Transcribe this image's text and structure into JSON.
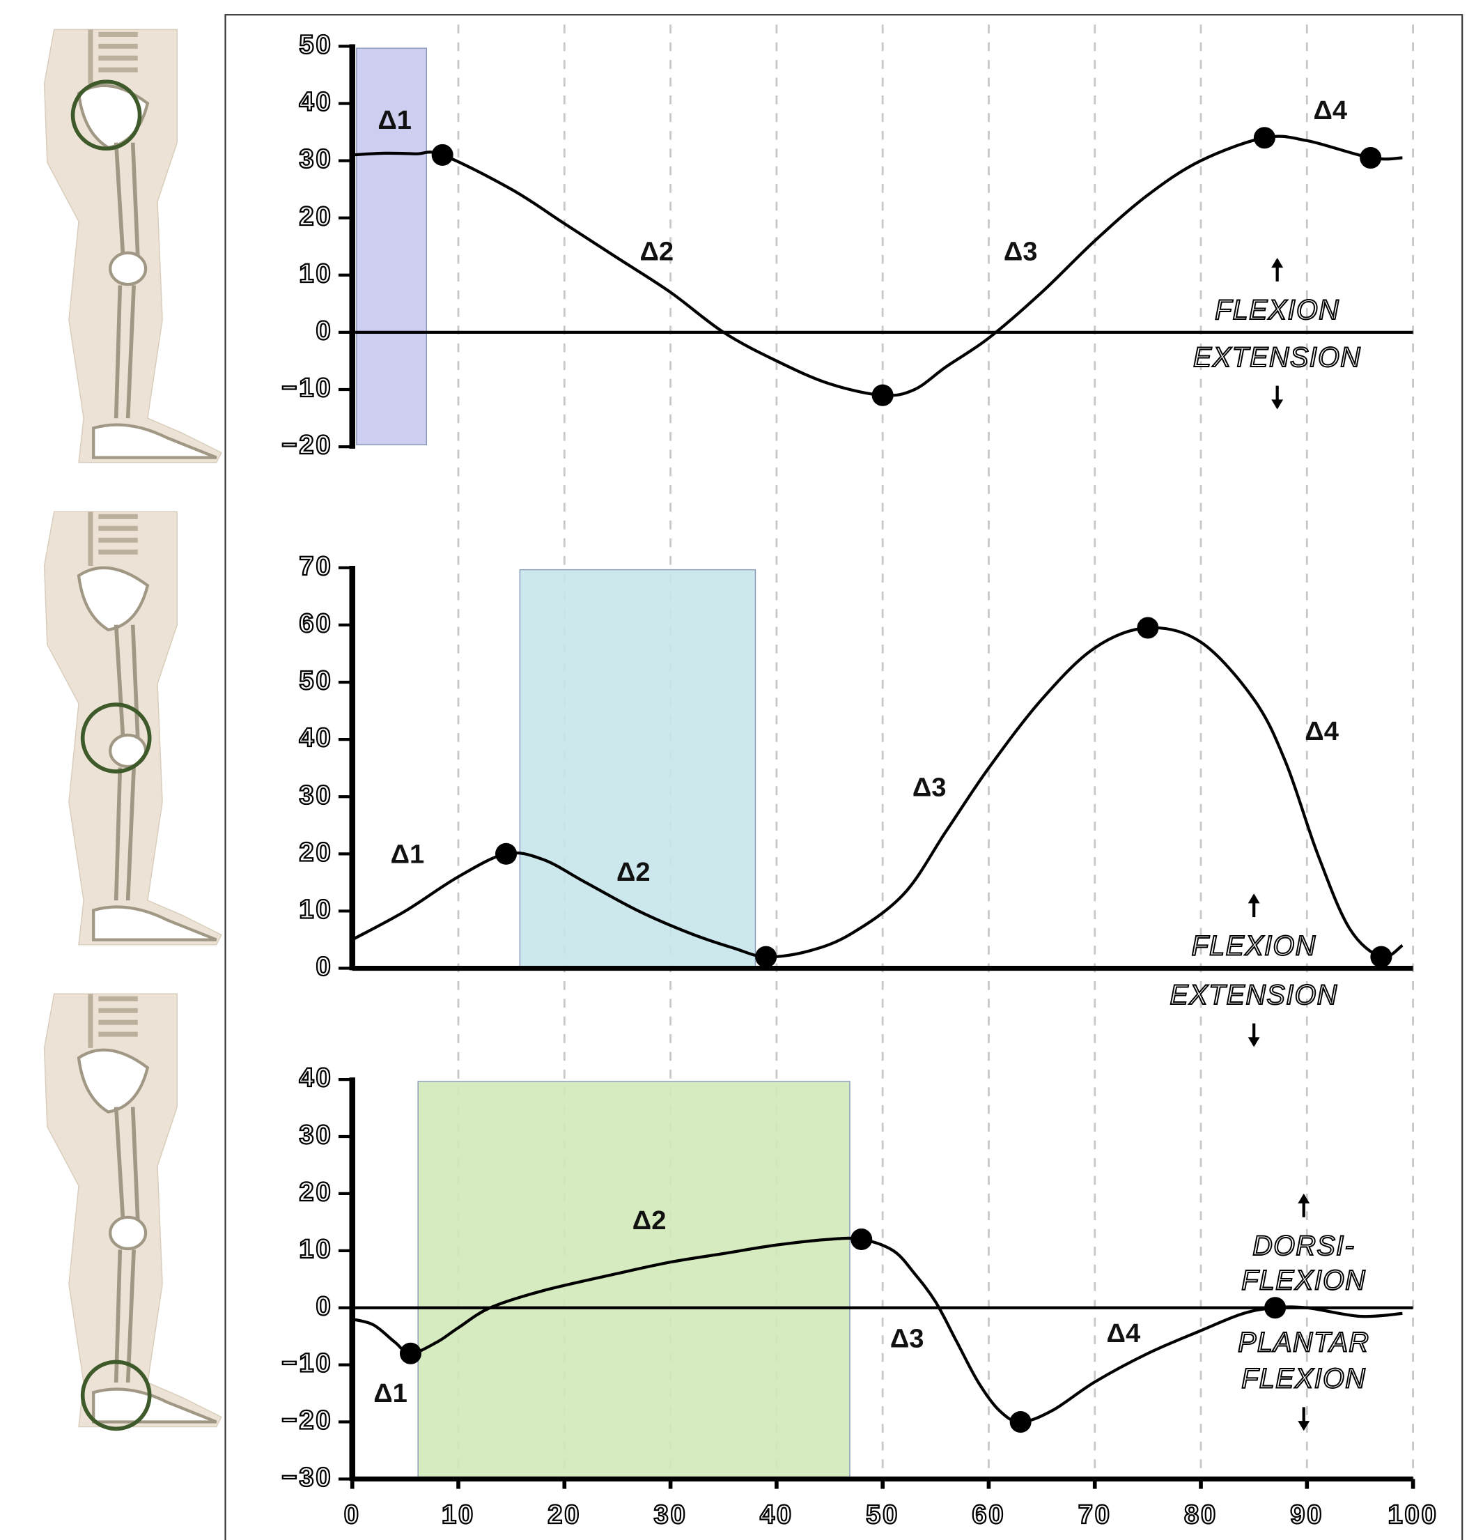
{
  "chart_data": [
    {
      "type": "line",
      "xlim": [
        0,
        100
      ],
      "ylim": [
        -20,
        50
      ],
      "yticks": [
        50,
        40,
        30,
        20,
        10,
        0,
        {
          "value": -10,
          "label": "−10"
        },
        {
          "value": -20,
          "label": "−20"
        }
      ],
      "x": [
        0,
        3,
        6,
        8.5,
        15,
        20,
        25,
        30,
        35,
        40,
        45,
        50,
        53,
        56,
        60,
        65,
        70,
        75,
        80,
        86,
        90,
        96,
        99
      ],
      "values": [
        31,
        31.3,
        31.2,
        31,
        25,
        19,
        13,
        7,
        0,
        -5,
        -9,
        -11,
        -10,
        -6,
        -1,
        7,
        16,
        24,
        30,
        34,
        33.5,
        30.5,
        30.5
      ],
      "points_x": [
        8.5,
        50,
        86,
        96
      ],
      "points_y": [
        31,
        -11,
        34,
        30.5
      ],
      "highlight_x": [
        0.4,
        7
      ],
      "highlight_color": "#c9c9ef",
      "color": "#000000",
      "annotations": [
        "Δ1",
        "Δ2",
        "Δ3",
        "Δ4"
      ],
      "upper_label": [
        "FLEXION"
      ],
      "lower_label": [
        "EXTENSION"
      ]
    },
    {
      "type": "line",
      "xlim": [
        0,
        100
      ],
      "ylim": [
        0,
        70
      ],
      "yticks": [
        70,
        60,
        50,
        40,
        30,
        20,
        10,
        0
      ],
      "x": [
        0,
        5,
        10,
        14.5,
        18,
        22,
        27,
        32,
        36,
        39,
        43,
        47,
        52,
        56,
        60,
        65,
        70,
        75,
        80,
        85,
        88,
        91,
        94,
        97,
        99
      ],
      "values": [
        5,
        10,
        16,
        20,
        19,
        15,
        10,
        6,
        3.5,
        2,
        3,
        6,
        13,
        24,
        35,
        47,
        56,
        59.5,
        57,
        47,
        36,
        20,
        7,
        2,
        4
      ],
      "points_x": [
        14.5,
        39,
        75,
        97
      ],
      "points_y": [
        20,
        2,
        59.5,
        2
      ],
      "highlight_x": [
        15.8,
        38
      ],
      "highlight_color": "#c6e5ea",
      "color": "#000000",
      "annotations": [
        "Δ1",
        "Δ2",
        "Δ3",
        "Δ4"
      ],
      "upper_label": [
        "FLEXION"
      ],
      "lower_label": [
        "EXTENSION"
      ]
    },
    {
      "type": "line",
      "xlim": [
        0,
        100
      ],
      "ylim": [
        -30,
        40
      ],
      "yticks": [
        40,
        30,
        20,
        10,
        0,
        {
          "value": -10,
          "label": "−10"
        },
        {
          "value": -20,
          "label": "−20"
        },
        {
          "value": -30,
          "label": "−30"
        }
      ],
      "xticks": [
        0,
        10,
        20,
        30,
        40,
        50,
        60,
        70,
        80,
        90,
        100
      ],
      "x": [
        0,
        2,
        4,
        5.5,
        8,
        10,
        13,
        18,
        25,
        30,
        35,
        40,
        45,
        48,
        51,
        53,
        55,
        57,
        59,
        61,
        63,
        66,
        70,
        75,
        80,
        84,
        87,
        90,
        95,
        99
      ],
      "values": [
        -2,
        -3,
        -6,
        -8,
        -6,
        -3.5,
        0,
        3,
        6,
        8,
        9.5,
        11,
        12,
        12,
        10,
        6,
        1,
        -6,
        -13,
        -18,
        -20,
        -18,
        -13,
        -8,
        -4,
        -1,
        0,
        0,
        -1.5,
        -1
      ],
      "points_x": [
        5.5,
        48,
        63,
        87
      ],
      "points_y": [
        -8,
        12,
        -20,
        0
      ],
      "highlight_x": [
        6.2,
        46.9
      ],
      "highlight_color": "#d2e9b8",
      "color": "#000000",
      "annotations": [
        "Δ1",
        "Δ2",
        "Δ3",
        "Δ4"
      ],
      "upper_label": [
        "DORSI-",
        "FLEXION"
      ],
      "lower_label": [
        "PLANTAR",
        "FLEXION"
      ]
    }
  ]
}
